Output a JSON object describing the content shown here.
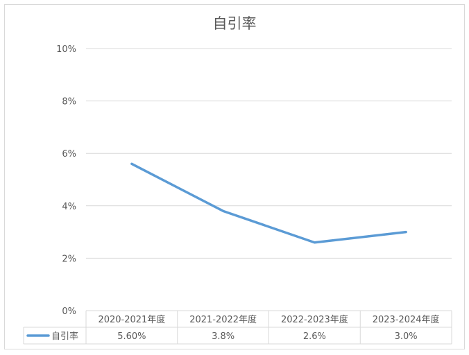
{
  "chart_data": {
    "type": "line",
    "title": "自引率",
    "categories": [
      "2020-2021年度",
      "2021-2022年度",
      "2022-2023年度",
      "2023-2024年度"
    ],
    "series": [
      {
        "name": "自引率",
        "values": [
          5.6,
          3.8,
          2.6,
          3.0
        ],
        "value_labels": [
          "5.60%",
          "3.8%",
          "2.6%",
          "3.0%"
        ],
        "color": "#5b9bd5"
      }
    ],
    "ylim": [
      0,
      10
    ],
    "yticks": [
      "0%",
      "2%",
      "4%",
      "6%",
      "8%",
      "10%"
    ],
    "grid": true,
    "legend": "data-table",
    "colors": {
      "grid": "#d9d9d9",
      "text": "#595959",
      "title": "#595959"
    }
  }
}
